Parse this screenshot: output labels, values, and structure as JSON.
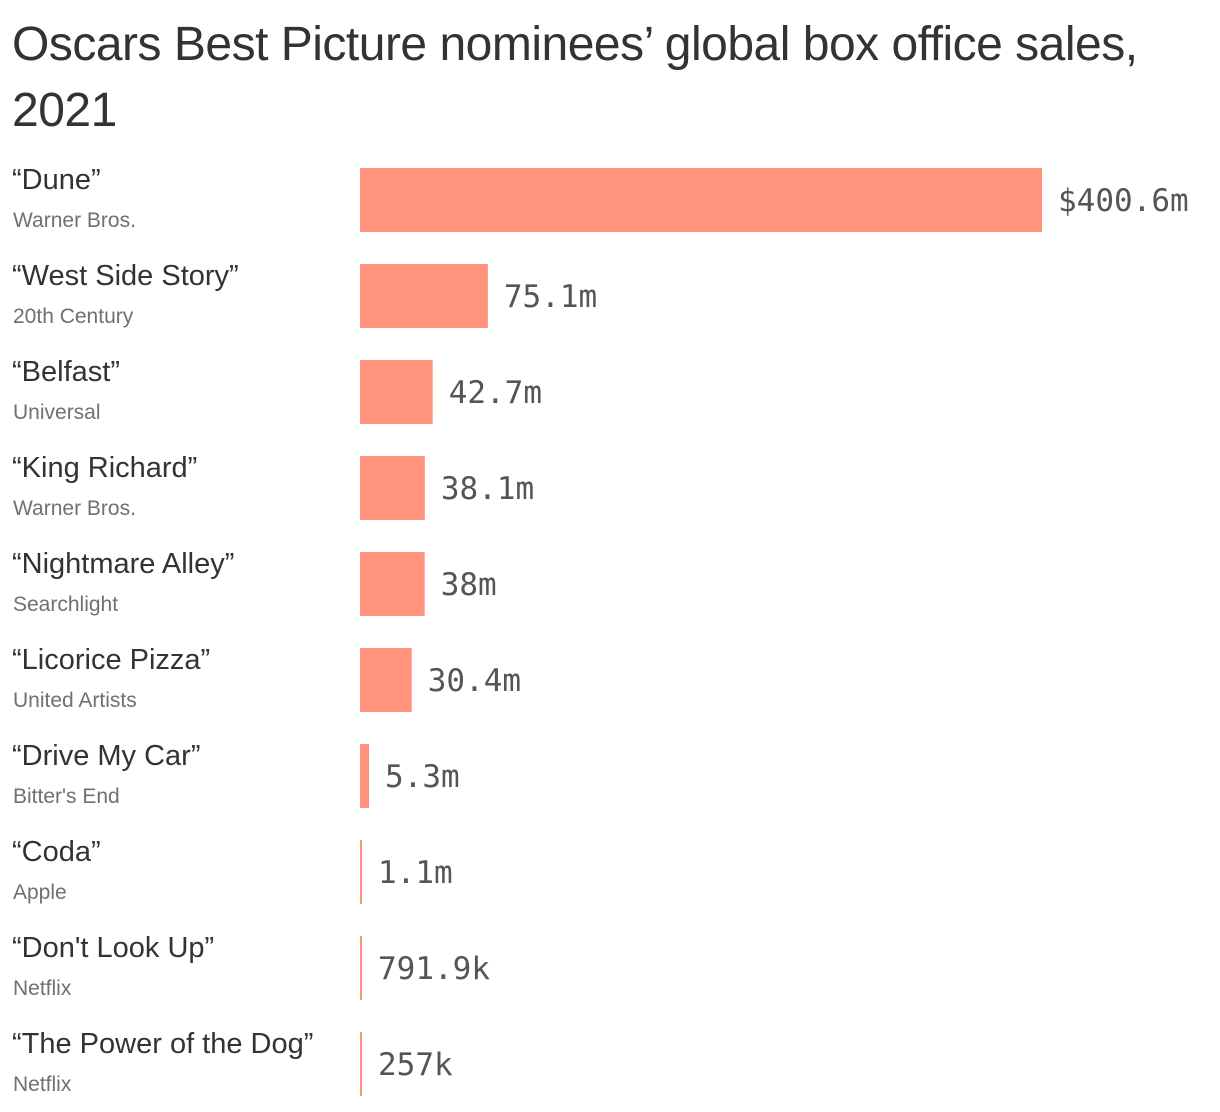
{
  "title": "Oscars Best Picture nominees’ global box office sales, 2021",
  "colors": {
    "bar": "#ff937c",
    "text": "#333333",
    "subtext": "#707070",
    "value_text": "#555555"
  },
  "chart_data": {
    "type": "bar",
    "orientation": "horizontal",
    "title": "Oscars Best Picture nominees’ global box office sales, 2021",
    "categories": [
      "“Dune”",
      "“West Side Story”",
      "“Belfast”",
      "“King Richard”",
      "“Nightmare Alley”",
      "“Licorice Pizza”",
      "“Drive My Car”",
      "“Coda”",
      "“Don't Look Up”",
      "“The Power of the Dog”"
    ],
    "studios": [
      "Warner Bros.",
      "20th Century",
      "Universal",
      "Warner Bros.",
      "Searchlight",
      "United Artists",
      "Bitter's End",
      "Apple",
      "Netflix",
      "Netflix"
    ],
    "values": [
      400.6,
      75.1,
      42.7,
      38.1,
      38,
      30.4,
      5.3,
      1.1,
      0.7919,
      0.257
    ],
    "unit": "millions of US dollars",
    "value_labels": [
      "$400.6m",
      "75.1m",
      "42.7m",
      "38.1m",
      "38m",
      "30.4m",
      "5.3m",
      "1.1m",
      "791.9k",
      "257k"
    ],
    "xlim": [
      0,
      400.6
    ],
    "grid": false,
    "legend": "none"
  }
}
